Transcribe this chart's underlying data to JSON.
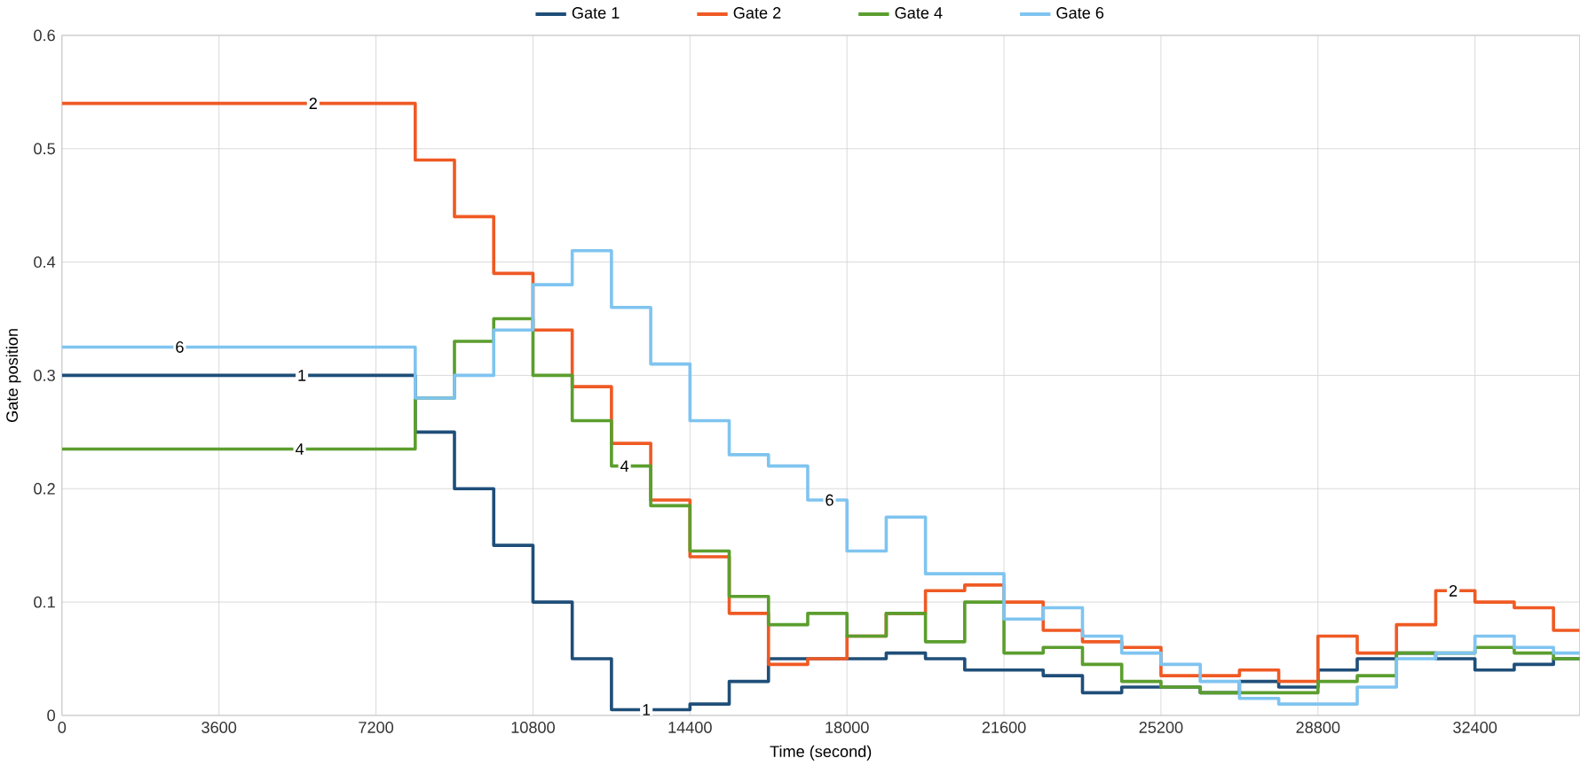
{
  "chart_data": {
    "type": "step",
    "xlabel": "Time (second)",
    "ylabel": "Gate position",
    "x": [
      0,
      8100,
      9000,
      9900,
      10800,
      11700,
      12600,
      13500,
      14400,
      15300,
      16200,
      17100,
      18000,
      18900,
      19800,
      20700,
      21600,
      22500,
      23400,
      24300,
      25200,
      26100,
      27000,
      27900,
      28800,
      29700,
      30600,
      31500,
      32400,
      33300,
      34200,
      34800
    ],
    "series": [
      {
        "name": "Gate 1",
        "color": "#1f4e79",
        "values": [
          0.3,
          0.25,
          0.2,
          0.15,
          0.1,
          0.05,
          0.005,
          0.005,
          0.01,
          0.03,
          0.05,
          0.05,
          0.05,
          0.055,
          0.05,
          0.04,
          0.04,
          0.035,
          0.02,
          0.025,
          0.025,
          0.02,
          0.03,
          0.025,
          0.04,
          0.05,
          0.055,
          0.05,
          0.04,
          0.045,
          0.05,
          0.05
        ]
      },
      {
        "name": "Gate 2",
        "color": "#ef5a24",
        "values": [
          0.54,
          0.49,
          0.44,
          0.39,
          0.34,
          0.29,
          0.24,
          0.19,
          0.14,
          0.09,
          0.045,
          0.05,
          0.07,
          0.09,
          0.11,
          0.115,
          0.1,
          0.075,
          0.065,
          0.06,
          0.035,
          0.035,
          0.04,
          0.03,
          0.07,
          0.055,
          0.08,
          0.11,
          0.1,
          0.095,
          0.075,
          0.075
        ]
      },
      {
        "name": "Gate 4",
        "color": "#5b9e2e",
        "values": [
          0.235,
          0.28,
          0.33,
          0.35,
          0.3,
          0.26,
          0.22,
          0.185,
          0.145,
          0.105,
          0.08,
          0.09,
          0.07,
          0.09,
          0.065,
          0.1,
          0.055,
          0.06,
          0.045,
          0.03,
          0.025,
          0.02,
          0.02,
          0.02,
          0.03,
          0.035,
          0.055,
          0.055,
          0.06,
          0.055,
          0.05,
          0.05
        ]
      },
      {
        "name": "Gate 6",
        "color": "#7fc4f0",
        "values": [
          0.325,
          0.28,
          0.3,
          0.34,
          0.38,
          0.41,
          0.36,
          0.31,
          0.26,
          0.23,
          0.22,
          0.19,
          0.145,
          0.175,
          0.125,
          0.125,
          0.085,
          0.095,
          0.07,
          0.055,
          0.045,
          0.03,
          0.015,
          0.01,
          0.01,
          0.025,
          0.05,
          0.055,
          0.07,
          0.06,
          0.055,
          0.055
        ]
      }
    ],
    "xlim": [
      0,
      34800
    ],
    "ylim": [
      0,
      0.6
    ],
    "xticks": [
      0,
      3600,
      7200,
      10800,
      14400,
      18000,
      21600,
      25200,
      28800,
      32400
    ],
    "yticks": [
      0,
      0.1,
      0.2,
      0.3,
      0.4,
      0.5,
      0.6
    ],
    "grid": true,
    "legend": "top",
    "annotations": [
      {
        "text": "2",
        "x": 5760,
        "y": 0.54
      },
      {
        "text": "6",
        "x": 2700,
        "y": 0.325
      },
      {
        "text": "1",
        "x": 5500,
        "y": 0.3
      },
      {
        "text": "4",
        "x": 5450,
        "y": 0.235
      },
      {
        "text": "4",
        "x": 12900,
        "y": 0.22
      },
      {
        "text": "6",
        "x": 17600,
        "y": 0.19
      },
      {
        "text": "1",
        "x": 13400,
        "y": 0.005
      },
      {
        "text": "2",
        "x": 31900,
        "y": 0.11
      }
    ]
  }
}
